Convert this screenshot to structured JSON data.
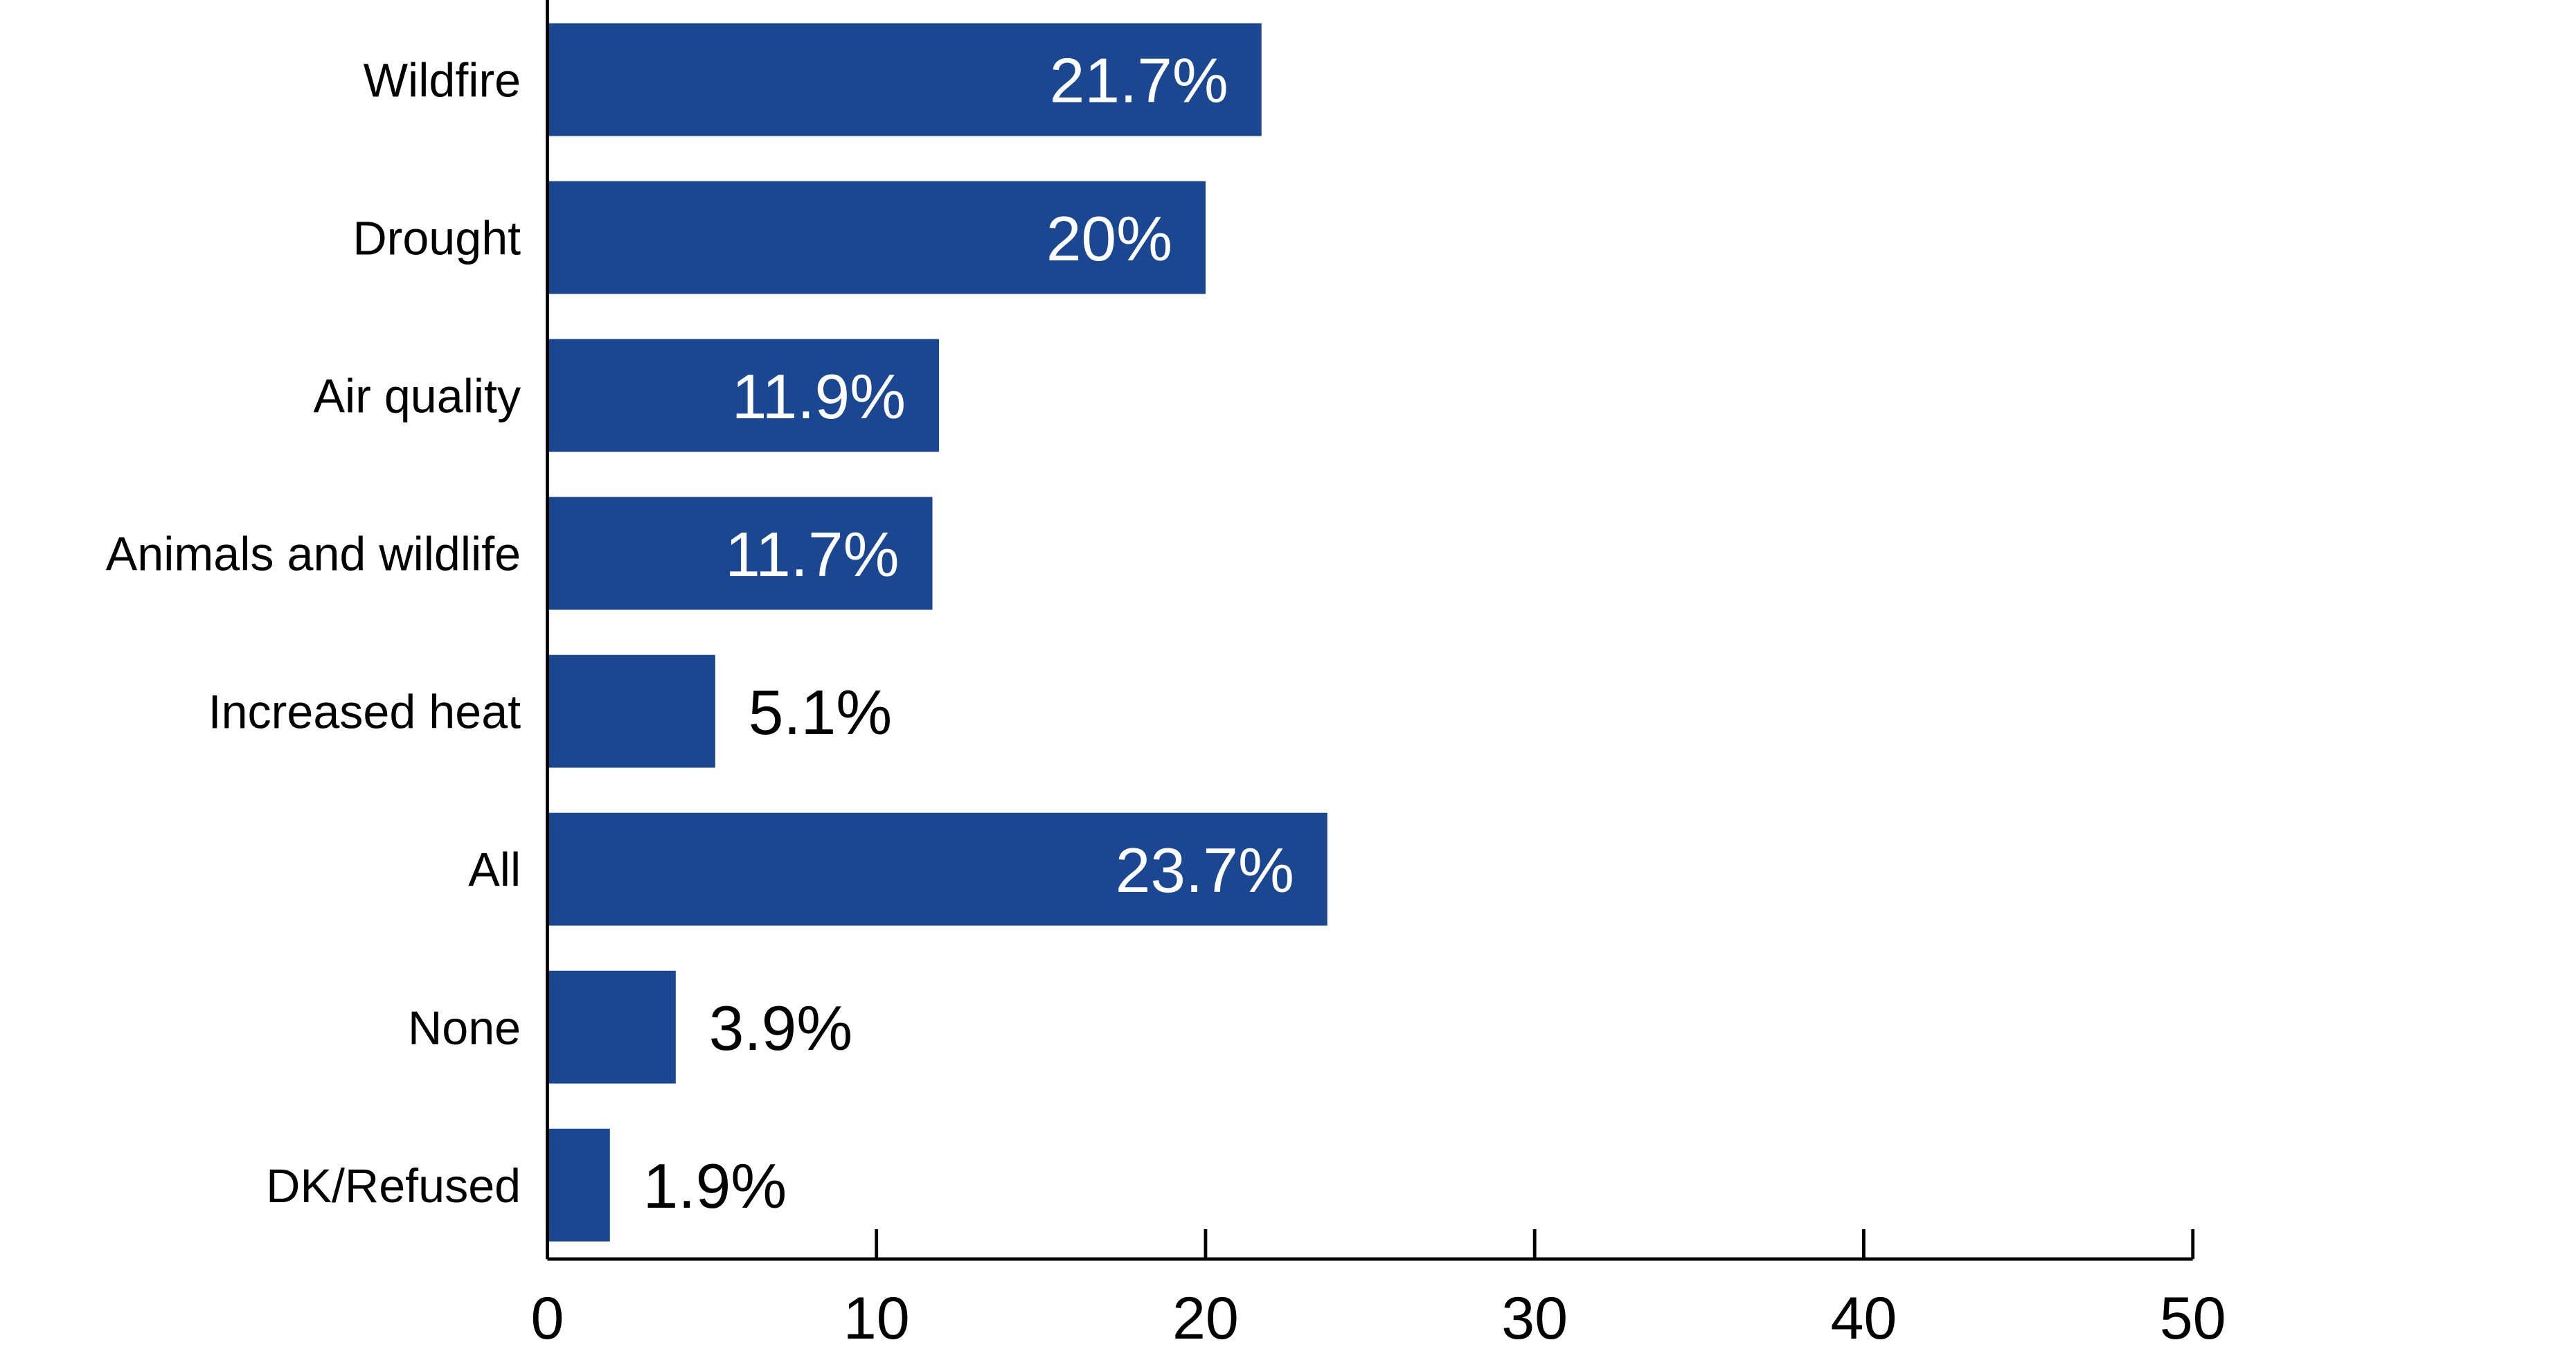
{
  "chart_data": {
    "type": "bar",
    "orientation": "horizontal",
    "title": "",
    "xlabel": "",
    "ylabel": "",
    "categories": [
      "Wildfire",
      "Drought",
      "Air quality",
      "Animals and wildlife",
      "Increased heat",
      "All",
      "None",
      "DK/Refused"
    ],
    "values": [
      21.7,
      20,
      11.9,
      11.7,
      5.1,
      23.7,
      3.9,
      1.9
    ],
    "value_labels": [
      "21.7%",
      "20%",
      "11.9%",
      "11.7%",
      "5.1%",
      "23.7%",
      "3.9%",
      "1.9%"
    ],
    "xlim": [
      0,
      50
    ],
    "xticks": [
      0,
      10,
      20,
      30,
      40,
      50
    ],
    "xtick_labels": [
      "0",
      "10",
      "20",
      "30",
      "40",
      "50"
    ],
    "bar_color": "#1a4790",
    "label_inside_color": "#ffffff",
    "label_outside_color": "#000000",
    "grid": false,
    "legend": "none"
  }
}
